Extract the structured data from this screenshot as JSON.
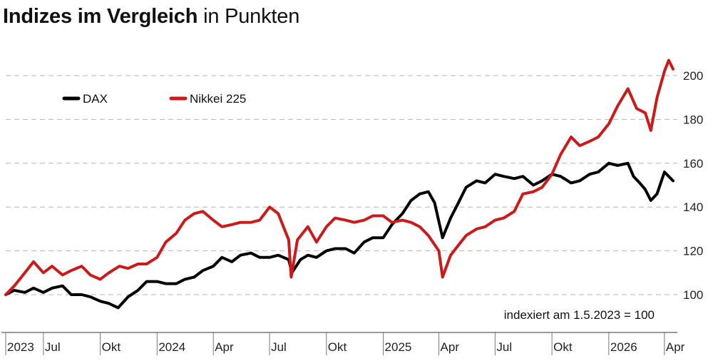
{
  "chart_data": {
    "type": "line",
    "title": "Indizes im Vergleich",
    "subtitle": "in Punkten",
    "annotation": "indexiert am 1.5.2023 = 100",
    "legend_position": "top-left",
    "grid": "horizontal dashed",
    "ylim": [
      90,
      210
    ],
    "yticks": [
      100,
      120,
      140,
      160,
      180,
      200
    ],
    "xlim": [
      "2023-05-01",
      "2026-04-15"
    ],
    "xticks": [
      {
        "date": "2023-05-01",
        "label": "2023"
      },
      {
        "date": "2023-07-01",
        "label": "Jul"
      },
      {
        "date": "2023-10-01",
        "label": "Okt"
      },
      {
        "date": "2024-01-01",
        "label": "2024"
      },
      {
        "date": "2024-04-01",
        "label": "Apr"
      },
      {
        "date": "2024-07-01",
        "label": "Jul"
      },
      {
        "date": "2024-10-01",
        "label": "Okt"
      },
      {
        "date": "2025-01-01",
        "label": "2025"
      },
      {
        "date": "2025-04-01",
        "label": "Apr"
      },
      {
        "date": "2025-07-01",
        "label": "Jul"
      },
      {
        "date": "2025-10-01",
        "label": "Okt"
      },
      {
        "date": "2026-01-01",
        "label": "2026"
      },
      {
        "date": "2026-04-01",
        "label": "Apr"
      }
    ],
    "series": [
      {
        "name": "DAX",
        "color": "#000000",
        "points": [
          [
            "2023-05-01",
            100
          ],
          [
            "2023-05-15",
            102
          ],
          [
            "2023-06-01",
            101
          ],
          [
            "2023-06-15",
            103
          ],
          [
            "2023-07-01",
            101
          ],
          [
            "2023-07-15",
            103
          ],
          [
            "2023-08-01",
            104
          ],
          [
            "2023-08-15",
            100
          ],
          [
            "2023-09-01",
            100
          ],
          [
            "2023-09-15",
            99
          ],
          [
            "2023-10-01",
            97
          ],
          [
            "2023-10-15",
            96
          ],
          [
            "2023-10-30",
            94
          ],
          [
            "2023-11-15",
            99
          ],
          [
            "2023-12-01",
            102
          ],
          [
            "2023-12-15",
            106
          ],
          [
            "2024-01-01",
            106
          ],
          [
            "2024-01-15",
            105
          ],
          [
            "2024-02-01",
            105
          ],
          [
            "2024-02-15",
            107
          ],
          [
            "2024-03-01",
            108
          ],
          [
            "2024-03-15",
            111
          ],
          [
            "2024-04-01",
            113
          ],
          [
            "2024-04-15",
            117
          ],
          [
            "2024-05-01",
            115
          ],
          [
            "2024-05-15",
            118
          ],
          [
            "2024-06-01",
            119
          ],
          [
            "2024-06-15",
            117
          ],
          [
            "2024-07-01",
            117
          ],
          [
            "2024-07-15",
            118
          ],
          [
            "2024-08-01",
            116
          ],
          [
            "2024-08-06",
            110
          ],
          [
            "2024-08-20",
            116
          ],
          [
            "2024-09-01",
            118
          ],
          [
            "2024-09-15",
            117
          ],
          [
            "2024-10-01",
            120
          ],
          [
            "2024-10-15",
            121
          ],
          [
            "2024-11-01",
            121
          ],
          [
            "2024-11-15",
            119
          ],
          [
            "2024-12-01",
            124
          ],
          [
            "2024-12-15",
            126
          ],
          [
            "2025-01-01",
            126
          ],
          [
            "2025-01-15",
            132
          ],
          [
            "2025-02-01",
            137
          ],
          [
            "2025-02-15",
            143
          ],
          [
            "2025-03-01",
            146
          ],
          [
            "2025-03-15",
            147
          ],
          [
            "2025-03-25",
            142
          ],
          [
            "2025-04-07",
            126
          ],
          [
            "2025-04-20",
            135
          ],
          [
            "2025-05-01",
            141
          ],
          [
            "2025-05-15",
            149
          ],
          [
            "2025-06-01",
            152
          ],
          [
            "2025-06-15",
            151
          ],
          [
            "2025-07-01",
            155
          ],
          [
            "2025-07-15",
            154
          ],
          [
            "2025-08-01",
            153
          ],
          [
            "2025-08-15",
            154
          ],
          [
            "2025-09-01",
            150
          ],
          [
            "2025-09-15",
            152
          ],
          [
            "2025-10-01",
            155
          ],
          [
            "2025-10-15",
            154
          ],
          [
            "2025-11-01",
            151
          ],
          [
            "2025-11-15",
            152
          ],
          [
            "2025-12-01",
            155
          ],
          [
            "2025-12-15",
            156
          ],
          [
            "2026-01-01",
            160
          ],
          [
            "2026-01-15",
            159
          ],
          [
            "2026-02-01",
            160
          ],
          [
            "2026-02-10",
            154
          ],
          [
            "2026-02-20",
            151
          ],
          [
            "2026-03-01",
            148
          ],
          [
            "2026-03-10",
            143
          ],
          [
            "2026-03-20",
            146
          ],
          [
            "2026-04-01",
            156
          ],
          [
            "2026-04-15",
            152
          ]
        ]
      },
      {
        "name": "Nikkei 225",
        "color": "#cc1a1a",
        "points": [
          [
            "2023-05-01",
            100
          ],
          [
            "2023-05-15",
            104
          ],
          [
            "2023-06-01",
            110
          ],
          [
            "2023-06-15",
            115
          ],
          [
            "2023-07-01",
            110
          ],
          [
            "2023-07-15",
            113
          ],
          [
            "2023-08-01",
            109
          ],
          [
            "2023-08-15",
            111
          ],
          [
            "2023-09-01",
            113
          ],
          [
            "2023-09-15",
            109
          ],
          [
            "2023-10-01",
            107
          ],
          [
            "2023-10-15",
            110
          ],
          [
            "2023-11-01",
            113
          ],
          [
            "2023-11-15",
            112
          ],
          [
            "2023-12-01",
            114
          ],
          [
            "2023-12-15",
            114
          ],
          [
            "2024-01-01",
            117
          ],
          [
            "2024-01-15",
            124
          ],
          [
            "2024-02-01",
            128
          ],
          [
            "2024-02-15",
            134
          ],
          [
            "2024-03-01",
            137
          ],
          [
            "2024-03-15",
            138
          ],
          [
            "2024-04-01",
            134
          ],
          [
            "2024-04-15",
            131
          ],
          [
            "2024-05-01",
            132
          ],
          [
            "2024-05-15",
            133
          ],
          [
            "2024-06-01",
            133
          ],
          [
            "2024-06-15",
            134
          ],
          [
            "2024-07-01",
            140
          ],
          [
            "2024-07-15",
            137
          ],
          [
            "2024-08-01",
            125
          ],
          [
            "2024-08-05",
            108
          ],
          [
            "2024-08-15",
            125
          ],
          [
            "2024-09-01",
            131
          ],
          [
            "2024-09-15",
            124
          ],
          [
            "2024-10-01",
            131
          ],
          [
            "2024-10-15",
            135
          ],
          [
            "2024-11-01",
            134
          ],
          [
            "2024-11-15",
            133
          ],
          [
            "2024-12-01",
            134
          ],
          [
            "2024-12-15",
            136
          ],
          [
            "2025-01-01",
            136
          ],
          [
            "2025-01-15",
            133
          ],
          [
            "2025-02-01",
            134
          ],
          [
            "2025-02-15",
            133
          ],
          [
            "2025-03-01",
            131
          ],
          [
            "2025-03-15",
            127
          ],
          [
            "2025-04-01",
            120
          ],
          [
            "2025-04-07",
            108
          ],
          [
            "2025-04-20",
            118
          ],
          [
            "2025-05-01",
            122
          ],
          [
            "2025-05-15",
            127
          ],
          [
            "2025-06-01",
            130
          ],
          [
            "2025-06-15",
            131
          ],
          [
            "2025-07-01",
            134
          ],
          [
            "2025-07-15",
            135
          ],
          [
            "2025-08-01",
            138
          ],
          [
            "2025-08-15",
            146
          ],
          [
            "2025-09-01",
            147
          ],
          [
            "2025-09-15",
            149
          ],
          [
            "2025-10-01",
            155
          ],
          [
            "2025-10-15",
            164
          ],
          [
            "2025-11-01",
            172
          ],
          [
            "2025-11-15",
            168
          ],
          [
            "2025-12-01",
            170
          ],
          [
            "2025-12-15",
            172
          ],
          [
            "2026-01-01",
            178
          ],
          [
            "2026-01-15",
            186
          ],
          [
            "2026-02-01",
            194
          ],
          [
            "2026-02-15",
            185
          ],
          [
            "2026-03-01",
            183
          ],
          [
            "2026-03-10",
            175
          ],
          [
            "2026-03-20",
            190
          ],
          [
            "2026-04-01",
            202
          ],
          [
            "2026-04-08",
            207
          ],
          [
            "2026-04-15",
            203
          ]
        ]
      }
    ]
  }
}
